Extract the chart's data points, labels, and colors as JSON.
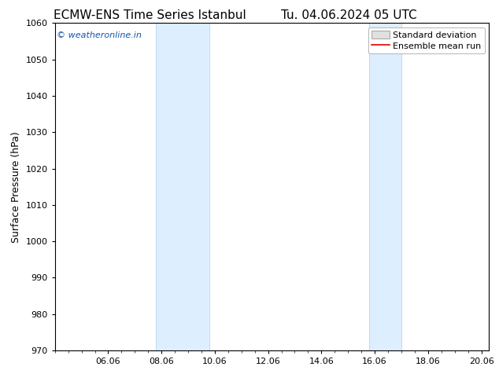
{
  "title_left": "ECMW-ENS Time Series Istanbul",
  "title_right": "Tu. 04.06.2024 05 UTC",
  "ylabel": "Surface Pressure (hPa)",
  "ylim": [
    970,
    1060
  ],
  "yticks": [
    970,
    980,
    990,
    1000,
    1010,
    1020,
    1030,
    1040,
    1050,
    1060
  ],
  "xtick_labels": [
    "06.06",
    "08.06",
    "10.06",
    "12.06",
    "14.06",
    "16.06",
    "18.06",
    "20.06"
  ],
  "xtick_positions": [
    2,
    4,
    6,
    8,
    10,
    12,
    14,
    16
  ],
  "xlim": [
    0,
    16.29
  ],
  "shaded_regions": [
    {
      "start": 3.79,
      "end": 5.79
    },
    {
      "start": 11.79,
      "end": 13.0
    }
  ],
  "shaded_color": "#ddeeff",
  "shaded_edge_color": "#b8d4ee",
  "watermark_text": "© weatheronline.in",
  "watermark_color": "#1155aa",
  "legend_std_label": "Standard deviation",
  "legend_mean_label": "Ensemble mean run",
  "legend_std_facecolor": "#e0e0e0",
  "legend_std_edgecolor": "#aaaaaa",
  "legend_mean_color": "#dd0000",
  "background_color": "#ffffff",
  "spine_color": "#000000",
  "tick_color": "#000000",
  "title_fontsize": 11,
  "tick_fontsize": 8,
  "ylabel_fontsize": 9,
  "watermark_fontsize": 8,
  "legend_fontsize": 8
}
